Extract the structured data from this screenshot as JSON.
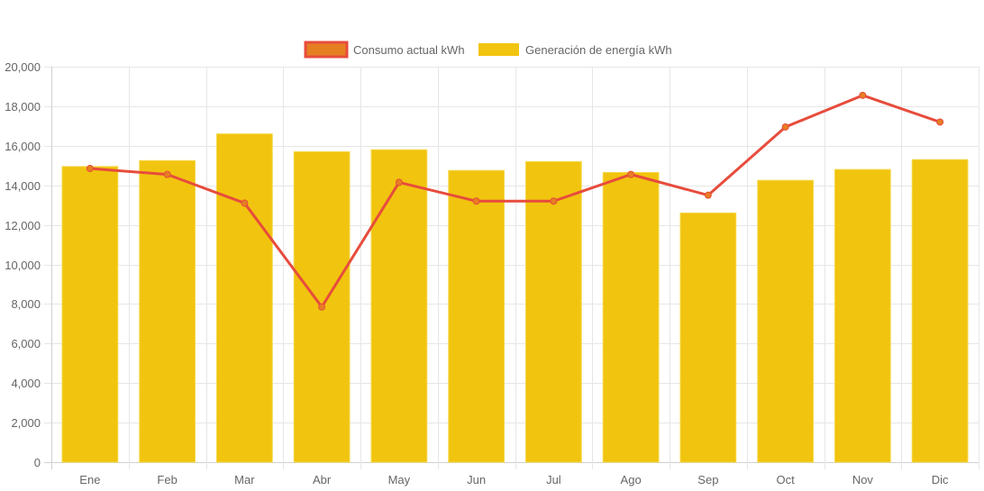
{
  "chart_data": {
    "type": "bar",
    "title": "",
    "xlabel": "",
    "ylabel": "",
    "categories": [
      "Ene",
      "Feb",
      "Mar",
      "Abr",
      "May",
      "Jun",
      "Jul",
      "Ago",
      "Sep",
      "Oct",
      "Nov",
      "Dic"
    ],
    "ylim": [
      0,
      20000
    ],
    "yticks": [
      0,
      2000,
      4000,
      6000,
      8000,
      10000,
      12000,
      14000,
      16000,
      18000,
      20000
    ],
    "ytick_labels": [
      "0",
      "2,000",
      "4,000",
      "6,000",
      "8,000",
      "10,000",
      "12,000",
      "14,000",
      "16,000",
      "18,000",
      "20,000"
    ],
    "grid": true,
    "legend_position": "top-center",
    "series": [
      {
        "name": "Consumo actual kWh",
        "type": "line",
        "color": "#e74c3c",
        "point_color": "#e67e22",
        "values": [
          14850,
          14550,
          13100,
          7850,
          14150,
          13200,
          13200,
          14550,
          13500,
          16950,
          18550,
          17200
        ]
      },
      {
        "name": "Generación de energía kWh",
        "type": "bar",
        "color": "#f1c40f",
        "values": [
          14950,
          15250,
          16600,
          15700,
          15800,
          14750,
          15200,
          14650,
          12600,
          14250,
          14800,
          15300
        ]
      }
    ]
  }
}
